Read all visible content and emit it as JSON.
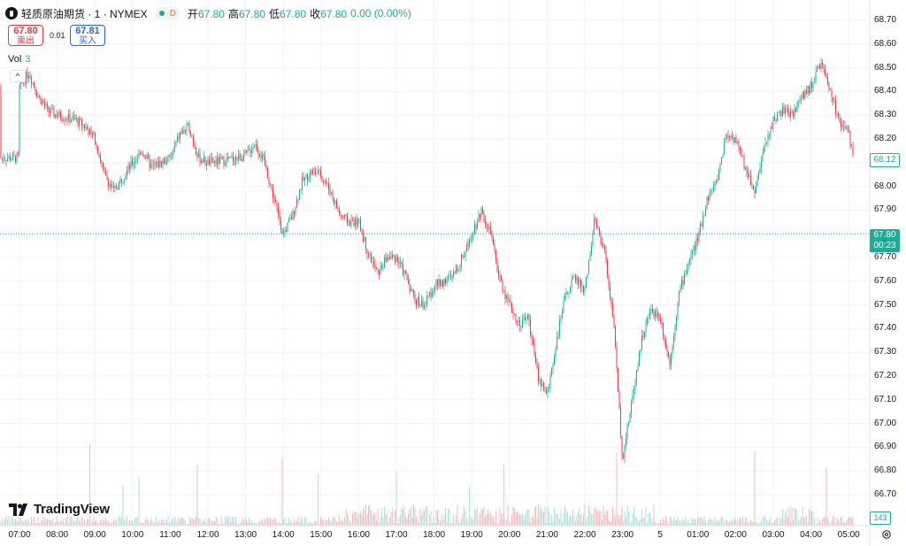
{
  "header": {
    "title": "轻质原油期货 · 1 · NYMEX",
    "status_letter": "D",
    "open_label": "开",
    "open_value": "67.80",
    "high_label": "高",
    "high_value": "67.80",
    "low_label": "低",
    "low_value": "67.80",
    "close_label": "收",
    "close_value": "67.80",
    "change": "0.00 (0.00%)"
  },
  "trade": {
    "bid_price": "67.80",
    "bid_label": "卖出",
    "spread": "0.01",
    "ask_price": "67.81",
    "ask_label": "买入"
  },
  "volume": {
    "label": "Vol",
    "value": "3",
    "axis_badge": "143"
  },
  "brand": "TradingView",
  "price_axis": [
    "68.70",
    "68.60",
    "68.50",
    "68.40",
    "68.30",
    "68.20",
    "68.10",
    "68.00",
    "67.90",
    "67.80",
    "67.70",
    "67.60",
    "67.50",
    "67.40",
    "67.30",
    "67.20",
    "67.10",
    "67.00",
    "66.90",
    "66.80",
    "66.70"
  ],
  "last_price_badge": "68.12",
  "current_price_badge": {
    "price": "67.80",
    "countdown": "00:23"
  },
  "time_axis": [
    "07:00",
    "08:00",
    "09:00",
    "10:00",
    "11:00",
    "12:00",
    "13:00",
    "14:00",
    "15:00",
    "16:00",
    "17:00",
    "18:00",
    "19:00",
    "20:00",
    "21:00",
    "22:00",
    "23:00",
    "5",
    "01:00",
    "02:00",
    "03:00",
    "04:00",
    "05:00"
  ],
  "colors": {
    "up": "#22ab94",
    "down": "#f23645",
    "grid": "#f0f3fa",
    "accent": "#2962ff"
  },
  "chart_data": {
    "type": "candlestick",
    "ylim": [
      66.66,
      68.72
    ],
    "current_price": 67.8,
    "last_price": 68.12,
    "price_path": [
      [
        "07:00",
        68.42
      ],
      [
        "07:15",
        68.48
      ],
      [
        "07:30",
        68.38
      ],
      [
        "07:45",
        68.32
      ],
      [
        "08:00",
        68.3
      ],
      [
        "08:30",
        68.28
      ],
      [
        "08:45",
        68.25
      ],
      [
        "09:00",
        68.2
      ],
      [
        "09:15",
        68.05
      ],
      [
        "09:30",
        67.98
      ],
      [
        "09:45",
        68.04
      ],
      [
        "10:00",
        68.1
      ],
      [
        "10:15",
        68.15
      ],
      [
        "10:30",
        68.08
      ],
      [
        "10:45",
        68.1
      ],
      [
        "11:00",
        68.12
      ],
      [
        "11:15",
        68.22
      ],
      [
        "11:30",
        68.25
      ],
      [
        "11:45",
        68.12
      ],
      [
        "12:00",
        68.1
      ],
      [
        "12:30",
        68.11
      ],
      [
        "12:45",
        68.12
      ],
      [
        "13:00",
        68.13
      ],
      [
        "13:15",
        68.18
      ],
      [
        "13:30",
        68.1
      ],
      [
        "13:45",
        67.95
      ],
      [
        "14:00",
        67.8
      ],
      [
        "14:15",
        67.88
      ],
      [
        "14:30",
        68.02
      ],
      [
        "14:45",
        68.06
      ],
      [
        "15:00",
        68.05
      ],
      [
        "15:15",
        67.98
      ],
      [
        "15:30",
        67.88
      ],
      [
        "15:45",
        67.85
      ],
      [
        "16:00",
        67.85
      ],
      [
        "16:15",
        67.72
      ],
      [
        "16:30",
        67.63
      ],
      [
        "16:45",
        67.7
      ],
      [
        "17:00",
        67.7
      ],
      [
        "17:15",
        67.62
      ],
      [
        "17:30",
        67.52
      ],
      [
        "17:45",
        67.5
      ],
      [
        "18:00",
        67.58
      ],
      [
        "18:15",
        67.6
      ],
      [
        "18:30",
        67.62
      ],
      [
        "18:45",
        67.7
      ],
      [
        "19:00",
        67.8
      ],
      [
        "19:15",
        67.9
      ],
      [
        "19:30",
        67.8
      ],
      [
        "19:45",
        67.6
      ],
      [
        "20:00",
        67.5
      ],
      [
        "20:15",
        67.42
      ],
      [
        "20:30",
        67.45
      ],
      [
        "20:45",
        67.2
      ],
      [
        "21:00",
        67.12
      ],
      [
        "21:15",
        67.35
      ],
      [
        "21:30",
        67.55
      ],
      [
        "21:45",
        67.62
      ],
      [
        "22:00",
        67.56
      ],
      [
        "22:15",
        67.85
      ],
      [
        "22:30",
        67.75
      ],
      [
        "22:45",
        67.45
      ],
      [
        "23:00",
        66.85
      ],
      [
        "23:15",
        67.1
      ],
      [
        "23:30",
        67.35
      ],
      [
        "23:45",
        67.48
      ],
      [
        "00:00",
        67.45
      ],
      [
        "00:15",
        67.25
      ],
      [
        "00:30",
        67.55
      ],
      [
        "00:45",
        67.68
      ],
      [
        "01:00",
        67.78
      ],
      [
        "01:15",
        67.95
      ],
      [
        "01:30",
        68.02
      ],
      [
        "01:45",
        68.22
      ],
      [
        "02:00",
        68.2
      ],
      [
        "02:15",
        68.08
      ],
      [
        "02:30",
        67.98
      ],
      [
        "02:45",
        68.15
      ],
      [
        "03:00",
        68.28
      ],
      [
        "03:15",
        68.32
      ],
      [
        "03:30",
        68.3
      ],
      [
        "03:45",
        68.38
      ],
      [
        "04:00",
        68.42
      ],
      [
        "04:15",
        68.52
      ],
      [
        "04:30",
        68.4
      ],
      [
        "04:45",
        68.28
      ],
      [
        "05:00",
        68.22
      ],
      [
        "05:08",
        68.12
      ]
    ],
    "volume_max": 143
  }
}
